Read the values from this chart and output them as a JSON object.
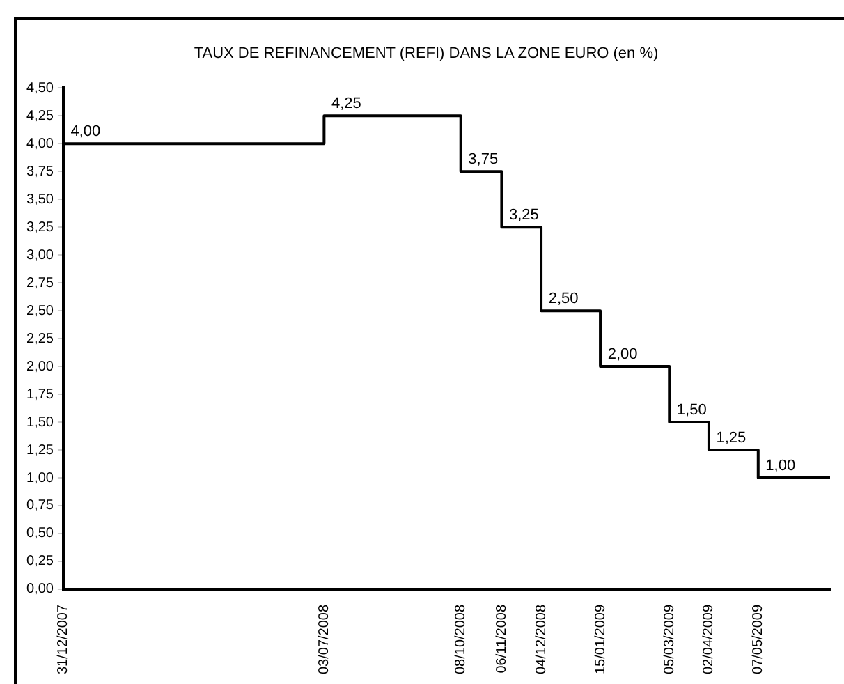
{
  "chart_data": {
    "type": "step",
    "title": "TAUX DE REFINANCEMENT (REFI) DANS LA ZONE EURO (en %)",
    "x": [
      "2007-12-31",
      "2008-07-03",
      "2008-10-08",
      "2008-11-06",
      "2008-12-04",
      "2009-01-15",
      "2009-03-05",
      "2009-04-02",
      "2009-05-07",
      "2009-06-27"
    ],
    "series": [
      {
        "color": "#000000",
        "values": [
          4.0,
          4.25,
          3.75,
          3.25,
          2.5,
          2.0,
          1.5,
          1.25,
          1.0,
          1.0
        ],
        "value_labels": [
          "4,00",
          "4,25",
          "3,75",
          "3,25",
          "2,50",
          "2,00",
          "1,50",
          "1,25",
          "1,00",
          null
        ]
      }
    ],
    "xlim": [
      "2007-12-31",
      "2009-06-27"
    ],
    "xticks": [
      {
        "value": "2007-12-31",
        "label": "31/12/2007"
      },
      {
        "value": "2008-07-03",
        "label": "03/07/2008"
      },
      {
        "value": "2008-10-08",
        "label": "08/10/2008"
      },
      {
        "value": "2008-11-06",
        "label": "06/11/2008"
      },
      {
        "value": "2008-12-04",
        "label": "04/12/2008"
      },
      {
        "value": "2009-01-15",
        "label": "15/01/2009"
      },
      {
        "value": "2009-03-05",
        "label": "05/03/2009"
      },
      {
        "value": "2009-04-02",
        "label": "02/04/2009"
      },
      {
        "value": "2009-05-07",
        "label": "07/05/2009"
      }
    ],
    "ylim": [
      0,
      4.5
    ],
    "yticks": [
      {
        "value": 0,
        "label": "0,00"
      },
      {
        "value": 0.25,
        "label": "0,25"
      },
      {
        "value": 0.5,
        "label": "0,50"
      },
      {
        "value": 0.75,
        "label": "0,75"
      },
      {
        "value": 1,
        "label": "1,00"
      },
      {
        "value": 1.25,
        "label": "1,25"
      },
      {
        "value": 1.5,
        "label": "1,50"
      },
      {
        "value": 1.75,
        "label": "1,75"
      },
      {
        "value": 2,
        "label": "2,00"
      },
      {
        "value": 2.25,
        "label": "2,25"
      },
      {
        "value": 2.5,
        "label": "2,50"
      },
      {
        "value": 2.75,
        "label": "2,75"
      },
      {
        "value": 3,
        "label": "3,00"
      },
      {
        "value": 3.25,
        "label": "3,25"
      },
      {
        "value": 3.5,
        "label": "3,50"
      },
      {
        "value": 3.75,
        "label": "3,75"
      },
      {
        "value": 4,
        "label": "4,00"
      },
      {
        "value": 4.25,
        "label": "4,25"
      },
      {
        "value": 4.5,
        "label": "4,50"
      }
    ],
    "grid": false,
    "legend": false,
    "marker": "none",
    "line_style": "solid"
  }
}
